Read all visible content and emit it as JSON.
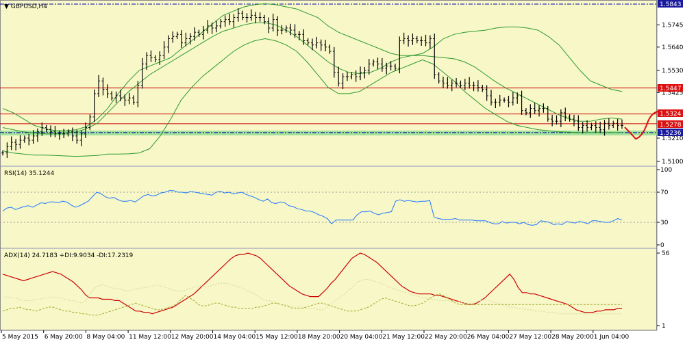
{
  "window": {
    "title": "GBPUSD,H4"
  },
  "colors": {
    "background": "#f7f7c8",
    "candle": "#000000",
    "bollinger": "#2e9a2e",
    "resistance": "#cc0000",
    "support_zone": "#60c060",
    "top_dash": "#0000aa",
    "rsi": "#1e78ff",
    "adx": "#cc0000",
    "plus_di": "#d8d898",
    "minus_di": "#a6a62a",
    "tag_red": "#dd1111",
    "tag_blue": "#1a1aa0",
    "tag_white": "#ffffff"
  },
  "price_tags": {
    "top_dash": "1.5843",
    "res_high": "1.5447",
    "res_mid": "1.5324",
    "res_low": "1.5278",
    "support": "1.5236"
  },
  "indicators": {
    "rsi_label": "RSI(14) 35.1244",
    "adx_label": "ADX(14) 24.7183 +DI:9.9034 -DI:17.2319"
  },
  "chart_data": [
    {
      "type": "candlestick",
      "title": "GBPUSD,H4",
      "y_ticks": [
        "1.5745",
        "1.5640",
        "1.5530",
        "1.5425",
        "1.5210",
        "1.5100"
      ],
      "ylim": [
        1.505,
        1.587
      ],
      "x_ticks": [
        "5 May 2015",
        "6 May 20:00",
        "8 May 04:00",
        "11 May 12:00",
        "12 May 20:00",
        "14 May 04:00",
        "15 May 12:00",
        "18 May 20:00",
        "20 May 04:00",
        "21 May 12:00",
        "22 May 20:00",
        "26 May 04:00",
        "27 May 12:00",
        "28 May 20:00",
        "1 Jun 04:00"
      ],
      "horizontal_lines": [
        {
          "value": 1.5843,
          "style": "dash-dot"
        },
        {
          "value": 1.5447,
          "style": "solid"
        },
        {
          "value": 1.5324,
          "style": "solid"
        },
        {
          "value": 1.5278,
          "style": "solid"
        },
        {
          "value": 1.5236,
          "style": "support-zone"
        }
      ],
      "close_path": [
        1.514,
        1.517,
        1.519,
        1.518,
        1.52,
        1.521,
        1.52,
        1.522,
        1.524,
        1.526,
        1.525,
        1.524,
        1.523,
        1.523,
        1.523,
        1.524,
        1.522,
        1.52,
        1.523,
        1.526,
        1.531,
        1.542,
        1.548,
        1.544,
        1.542,
        1.54,
        1.541,
        1.54,
        1.539,
        1.54,
        1.538,
        1.546,
        1.556,
        1.56,
        1.559,
        1.558,
        1.56,
        1.564,
        1.568,
        1.569,
        1.57,
        1.566,
        1.568,
        1.569,
        1.571,
        1.57,
        1.572,
        1.574,
        1.573,
        1.574,
        1.576,
        1.577,
        1.576,
        1.578,
        1.58,
        1.578,
        1.578,
        1.579,
        1.578,
        1.578,
        1.576,
        1.573,
        1.577,
        1.572,
        1.572,
        1.573,
        1.572,
        1.57,
        1.57,
        1.567,
        1.566,
        1.565,
        1.566,
        1.565,
        1.564,
        1.562,
        1.552,
        1.547,
        1.55,
        1.55,
        1.551,
        1.55,
        1.552,
        1.553,
        1.556,
        1.557,
        1.556,
        1.554,
        1.555,
        1.555,
        1.554,
        1.567,
        1.568,
        1.567,
        1.568,
        1.567,
        1.567,
        1.566,
        1.568,
        1.551,
        1.548,
        1.547,
        1.546,
        1.547,
        1.547,
        1.546,
        1.547,
        1.546,
        1.546,
        1.545,
        1.544,
        1.541,
        1.538,
        1.538,
        1.539,
        1.539,
        1.538,
        1.54,
        1.541,
        1.534,
        1.533,
        1.535,
        1.534,
        1.535,
        1.535,
        1.53,
        1.529,
        1.529,
        1.533,
        1.531,
        1.53,
        1.529,
        1.526,
        1.527,
        1.526,
        1.527,
        1.526,
        1.525,
        1.528,
        1.527,
        1.528,
        1.527,
        1.527
      ],
      "bollinger_upper": [
        1.535,
        1.533,
        1.53,
        1.527,
        1.5255,
        1.5245,
        1.5245,
        1.525,
        1.5265,
        1.53,
        1.535,
        1.542,
        1.548,
        1.553,
        1.555,
        1.557,
        1.559,
        1.563,
        1.567,
        1.571,
        1.575,
        1.579,
        1.581,
        1.583,
        1.584,
        1.5845,
        1.584,
        1.583,
        1.582,
        1.58,
        1.578,
        1.574,
        1.571,
        1.569,
        1.567,
        1.565,
        1.563,
        1.561,
        1.56,
        1.56,
        1.561,
        1.564,
        1.568,
        1.57,
        1.571,
        1.5715,
        1.572,
        1.573,
        1.5735,
        1.5735,
        1.573,
        1.572,
        1.569,
        1.565,
        1.559,
        1.553,
        1.548,
        1.546,
        1.544,
        1.543
      ],
      "bollinger_middle": [
        1.526,
        1.525,
        1.524,
        1.5235,
        1.523,
        1.523,
        1.5235,
        1.524,
        1.5255,
        1.528,
        1.533,
        1.538,
        1.543,
        1.547,
        1.551,
        1.554,
        1.557,
        1.56,
        1.563,
        1.566,
        1.569,
        1.5715,
        1.573,
        1.5745,
        1.5755,
        1.5755,
        1.5745,
        1.572,
        1.569,
        1.565,
        1.561,
        1.557,
        1.554,
        1.552,
        1.5515,
        1.552,
        1.554,
        1.557,
        1.559,
        1.56,
        1.56,
        1.5595,
        1.559,
        1.5585,
        1.557,
        1.5545,
        1.551,
        1.5475,
        1.5445,
        1.542,
        1.5395,
        1.537,
        1.5345,
        1.532,
        1.53,
        1.529,
        1.529,
        1.53,
        1.5305,
        1.53
      ],
      "bollinger_lower": [
        1.515,
        1.514,
        1.5135,
        1.513,
        1.513,
        1.5128,
        1.5126,
        1.5124,
        1.5126,
        1.5128,
        1.5135,
        1.5135,
        1.5136,
        1.514,
        1.516,
        1.522,
        1.53,
        1.539,
        1.545,
        1.55,
        1.554,
        1.558,
        1.562,
        1.565,
        1.567,
        1.568,
        1.567,
        1.565,
        1.562,
        1.557,
        1.551,
        1.545,
        1.542,
        1.542,
        1.543,
        1.546,
        1.549,
        1.552,
        1.554,
        1.556,
        1.558,
        1.556,
        1.552,
        1.548,
        1.543,
        1.539,
        1.535,
        1.532,
        1.529,
        1.527,
        1.526,
        1.525,
        1.5245,
        1.524,
        1.5238,
        1.5236,
        1.5236,
        1.5236,
        1.5236,
        1.5236
      ]
    },
    {
      "type": "line",
      "title": "RSI(14) 35.1244",
      "ylim": [
        0,
        100
      ],
      "y_ticks": [
        "100",
        "70",
        "30",
        "0"
      ],
      "reference_lines": [
        70,
        30
      ],
      "series": [
        {
          "values": [
            45,
            49,
            50,
            47,
            49,
            51,
            52,
            50,
            53,
            56,
            55,
            57,
            57,
            56,
            58,
            57,
            53,
            50,
            52,
            55,
            58,
            64,
            70,
            68,
            64,
            62,
            63,
            60,
            58,
            58,
            59,
            57,
            61,
            65,
            67,
            65,
            66,
            69,
            70,
            72,
            72,
            70,
            70,
            69,
            71,
            70,
            69,
            68,
            67,
            66,
            70,
            71,
            69,
            70,
            68,
            69,
            70,
            67,
            65,
            63,
            60,
            58,
            61,
            56,
            55,
            57,
            56,
            52,
            51,
            48,
            47,
            45,
            45,
            43,
            40,
            38,
            35,
            28,
            33,
            33,
            33,
            33,
            33,
            40,
            44,
            44,
            45,
            42,
            40,
            42,
            43,
            44,
            58,
            60,
            58,
            59,
            58,
            57,
            58,
            58,
            59,
            37,
            35,
            34,
            34,
            34,
            35,
            33,
            33,
            33,
            33,
            32,
            32,
            32,
            30,
            28,
            28,
            31,
            29,
            30,
            30,
            28,
            30,
            27,
            26,
            27,
            32,
            31,
            30,
            27,
            28,
            27,
            31,
            30,
            29,
            31,
            30,
            28,
            32,
            32,
            31,
            30,
            30,
            32,
            35,
            33
          ]
        }
      ]
    },
    {
      "type": "line",
      "title": "ADX(14) 24.7183 +DI:9.9034 -DI:17.2319",
      "ylim": [
        1,
        56
      ],
      "y_ticks": [
        "56",
        "1"
      ],
      "series": [
        {
          "values": [
            40,
            39,
            38,
            37,
            36,
            35,
            36,
            37,
            38,
            39,
            40,
            41,
            42,
            41,
            40,
            38,
            36,
            34,
            31,
            28,
            24,
            22,
            22,
            22,
            21,
            21,
            21,
            20,
            20,
            18,
            16,
            14,
            12,
            12,
            11,
            11,
            10,
            11,
            12,
            13,
            14,
            15,
            17,
            19,
            21,
            23,
            25,
            28,
            31,
            34,
            37,
            40,
            43,
            46,
            49,
            52,
            54,
            55,
            55,
            56,
            55,
            54,
            52,
            49,
            46,
            43,
            40,
            37,
            34,
            31,
            29,
            27,
            25,
            24,
            23,
            23,
            23,
            26,
            29,
            33,
            36,
            40,
            44,
            48,
            52,
            54,
            56,
            55,
            53,
            51,
            49,
            46,
            43,
            40,
            37,
            34,
            31,
            29,
            27,
            26,
            25,
            25,
            25,
            25,
            24,
            24,
            23,
            22,
            21,
            20,
            19,
            18,
            17,
            17,
            18,
            20,
            22,
            25,
            28,
            31,
            34,
            37,
            40,
            36,
            30,
            26,
            26,
            25,
            25,
            24,
            23,
            22,
            21,
            20,
            19,
            18,
            17,
            15,
            13,
            12,
            11,
            11,
            11,
            12,
            12,
            13,
            13,
            13,
            14,
            14
          ]
        },
        {
          "values": [
            22,
            23,
            22,
            22,
            21,
            20,
            20,
            20,
            21,
            21,
            22,
            22,
            23,
            22,
            22,
            21,
            20,
            20,
            19,
            18,
            20,
            25,
            29,
            31,
            32,
            31,
            30,
            29,
            29,
            28,
            27,
            28,
            29,
            29,
            30,
            30,
            31,
            32,
            31,
            30,
            29,
            28,
            27,
            27,
            28,
            29,
            30,
            31,
            31,
            30,
            31,
            32,
            33,
            33,
            33,
            32,
            31,
            30,
            29,
            27,
            26,
            24,
            22,
            20,
            20,
            19,
            18,
            17,
            17,
            16,
            15,
            15,
            15,
            14,
            14,
            14,
            13,
            13,
            15,
            17,
            20,
            22,
            24,
            27,
            30,
            33,
            35,
            36,
            36,
            35,
            34,
            33,
            32,
            30,
            29,
            28,
            27,
            26,
            25,
            24,
            23,
            22,
            22,
            21,
            21,
            20,
            20,
            20,
            19,
            19,
            19,
            18,
            18,
            18,
            19,
            20,
            21,
            20,
            19,
            18,
            17,
            16,
            15,
            15,
            14,
            14,
            13,
            13,
            12,
            12,
            12,
            11,
            11,
            11,
            10,
            10,
            10,
            10,
            10,
            10,
            10,
            10,
            10,
            10,
            10,
            10,
            10,
            10,
            10,
            10
          ]
        },
        {
          "values": [
            12,
            13,
            14,
            14,
            15,
            14,
            13,
            13,
            12,
            13,
            14,
            15,
            15,
            14,
            13,
            12,
            12,
            11,
            11,
            10,
            10,
            9,
            9,
            9,
            10,
            11,
            12,
            13,
            14,
            15,
            16,
            17,
            18,
            17,
            16,
            15,
            14,
            13,
            13,
            14,
            15,
            16,
            18,
            21,
            24,
            22,
            20,
            17,
            16,
            16,
            17,
            18,
            18,
            17,
            16,
            15,
            15,
            14,
            14,
            14,
            14,
            15,
            15,
            16,
            17,
            18,
            18,
            17,
            16,
            15,
            14,
            14,
            14,
            15,
            16,
            17,
            18,
            18,
            17,
            16,
            15,
            14,
            13,
            12,
            12,
            12,
            13,
            14,
            15,
            17,
            19,
            21,
            22,
            21,
            20,
            19,
            18,
            17,
            16,
            16,
            17,
            18,
            20,
            22,
            24,
            25,
            24,
            22,
            20,
            18,
            17,
            17,
            17,
            17,
            17,
            17,
            17,
            17,
            17,
            17,
            17,
            17,
            17,
            17,
            17,
            17,
            17,
            17,
            17,
            17,
            17,
            17,
            17,
            17,
            17,
            17,
            17,
            17,
            17,
            17,
            17,
            17,
            17,
            17,
            17,
            17,
            17,
            17,
            17,
            17
          ]
        }
      ]
    }
  ]
}
